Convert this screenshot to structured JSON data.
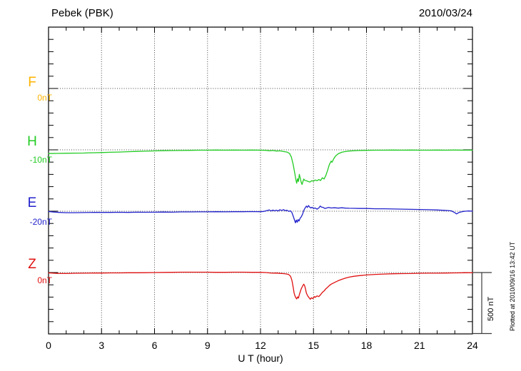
{
  "plotted_note": "Plotted at 2010/09/16 13:42 UT",
  "colors": {
    "axis": "#000000",
    "grid": "#444444",
    "scalebar": "#3c3c3c"
  },
  "chart_data": {
    "type": "line",
    "title": "Pebek (PBK)",
    "date": "2010/03/24",
    "xlabel": "U T (hour)",
    "x_range": [
      0,
      24
    ],
    "x_major_ticks": [
      "0",
      "3",
      "6",
      "9",
      "12",
      "15",
      "18",
      "21",
      "24"
    ],
    "x_major_tick_values": [
      0,
      3,
      6,
      9,
      12,
      15,
      18,
      21,
      24
    ],
    "x_minor_step_hours": 1,
    "y_unit": "nT",
    "y_minor_division_nT": 100,
    "channel_baseline_spacing_nT": 500,
    "grid_style": "dotted",
    "legend_position": "left",
    "scale_bar": {
      "label": "500 nT",
      "nT": 500
    },
    "series": [
      {
        "name": "F",
        "baseline_label": "0nT",
        "color": "#FFB300",
        "unit": "nT",
        "no_data": true,
        "points": []
      },
      {
        "name": "H",
        "baseline_label": "-10nT",
        "color": "#22CC22",
        "unit": "nT",
        "points": [
          [
            0,
            -30
          ],
          [
            0.5,
            -29
          ],
          [
            1,
            -28
          ],
          [
            1.5,
            -27
          ],
          [
            2,
            -26
          ],
          [
            2.5,
            -24
          ],
          [
            3,
            -22
          ],
          [
            3.5,
            -20
          ],
          [
            4,
            -18
          ],
          [
            4.5,
            -15
          ],
          [
            5,
            -13
          ],
          [
            5.5,
            -11
          ],
          [
            6,
            -9
          ],
          [
            6.5,
            -7
          ],
          [
            7,
            -6
          ],
          [
            7.5,
            -5
          ],
          [
            8,
            -4
          ],
          [
            8.5,
            -3
          ],
          [
            9,
            -3
          ],
          [
            9.5,
            -2
          ],
          [
            10,
            -3
          ],
          [
            10.5,
            -2
          ],
          [
            11,
            -3
          ],
          [
            11.5,
            -2
          ],
          [
            12,
            -3
          ],
          [
            12.3,
            -4
          ],
          [
            12.5,
            -8
          ],
          [
            12.7,
            -5
          ],
          [
            12.9,
            -10
          ],
          [
            13.1,
            -8
          ],
          [
            13.3,
            -14
          ],
          [
            13.5,
            -18
          ],
          [
            13.65,
            -30
          ],
          [
            13.75,
            -60
          ],
          [
            13.85,
            -120
          ],
          [
            13.95,
            -200
          ],
          [
            14.0,
            -240
          ],
          [
            14.05,
            -272
          ],
          [
            14.1,
            -235
          ],
          [
            14.15,
            -258
          ],
          [
            14.2,
            -200
          ],
          [
            14.25,
            -230
          ],
          [
            14.3,
            -262
          ],
          [
            14.35,
            -282
          ],
          [
            14.4,
            -260
          ],
          [
            14.45,
            -238
          ],
          [
            14.5,
            -248
          ],
          [
            14.6,
            -252
          ],
          [
            14.7,
            -258
          ],
          [
            14.8,
            -262
          ],
          [
            14.9,
            -252
          ],
          [
            15.0,
            -256
          ],
          [
            15.1,
            -246
          ],
          [
            15.2,
            -252
          ],
          [
            15.3,
            -242
          ],
          [
            15.4,
            -250
          ],
          [
            15.5,
            -228
          ],
          [
            15.6,
            -238
          ],
          [
            15.7,
            -208
          ],
          [
            15.8,
            -165
          ],
          [
            15.9,
            -120
          ],
          [
            16.0,
            -92
          ],
          [
            16.05,
            -102
          ],
          [
            16.15,
            -72
          ],
          [
            16.25,
            -50
          ],
          [
            16.4,
            -32
          ],
          [
            16.6,
            -20
          ],
          [
            16.8,
            -14
          ],
          [
            17.0,
            -10
          ],
          [
            17.5,
            -6
          ],
          [
            18,
            -4
          ],
          [
            18.5,
            -3
          ],
          [
            19,
            -3
          ],
          [
            19.5,
            -2
          ],
          [
            20,
            -3
          ],
          [
            20.5,
            -2
          ],
          [
            21,
            -3
          ],
          [
            21.5,
            -3
          ],
          [
            22,
            -2
          ],
          [
            22.5,
            -3
          ],
          [
            23,
            -2
          ],
          [
            23.5,
            -3
          ],
          [
            24,
            -3
          ]
        ]
      },
      {
        "name": "E",
        "baseline_label": "-20nT",
        "color": "#2222CC",
        "unit": "nT",
        "points": [
          [
            0,
            -3
          ],
          [
            0.3,
            -7
          ],
          [
            0.6,
            -10
          ],
          [
            1,
            -12
          ],
          [
            1.5,
            -12
          ],
          [
            2,
            -11
          ],
          [
            2.5,
            -10
          ],
          [
            3,
            -10
          ],
          [
            3.5,
            -10
          ],
          [
            4,
            -9
          ],
          [
            4.5,
            -10
          ],
          [
            5,
            -8
          ],
          [
            5.5,
            -9
          ],
          [
            6,
            -8
          ],
          [
            6.5,
            -7
          ],
          [
            7,
            -8
          ],
          [
            7.5,
            -6
          ],
          [
            8,
            -6
          ],
          [
            8.5,
            -5
          ],
          [
            9,
            -5
          ],
          [
            9.5,
            -4
          ],
          [
            10,
            -5
          ],
          [
            10.5,
            -4
          ],
          [
            11,
            -4
          ],
          [
            11.5,
            -3
          ],
          [
            12,
            -4
          ],
          [
            12.2,
            -2
          ],
          [
            12.35,
            4
          ],
          [
            12.5,
            10
          ],
          [
            12.6,
            2
          ],
          [
            12.7,
            9
          ],
          [
            12.8,
            3
          ],
          [
            12.9,
            8
          ],
          [
            13.0,
            2
          ],
          [
            13.1,
            12
          ],
          [
            13.2,
            5
          ],
          [
            13.3,
            13
          ],
          [
            13.4,
            4
          ],
          [
            13.5,
            8
          ],
          [
            13.6,
            -2
          ],
          [
            13.7,
            3
          ],
          [
            13.78,
            -12
          ],
          [
            13.85,
            -40
          ],
          [
            13.92,
            -70
          ],
          [
            13.98,
            -95
          ],
          [
            14.03,
            -72
          ],
          [
            14.08,
            -90
          ],
          [
            14.13,
            -68
          ],
          [
            14.18,
            -80
          ],
          [
            14.25,
            -55
          ],
          [
            14.3,
            -48
          ],
          [
            14.38,
            -25
          ],
          [
            14.45,
            5
          ],
          [
            14.52,
            25
          ],
          [
            14.6,
            42
          ],
          [
            14.65,
            30
          ],
          [
            14.72,
            46
          ],
          [
            14.78,
            34
          ],
          [
            14.85,
            26
          ],
          [
            14.92,
            32
          ],
          [
            15.0,
            22
          ],
          [
            15.1,
            26
          ],
          [
            15.2,
            16
          ],
          [
            15.3,
            26
          ],
          [
            15.38,
            42
          ],
          [
            15.45,
            34
          ],
          [
            15.55,
            30
          ],
          [
            15.65,
            22
          ],
          [
            15.75,
            26
          ],
          [
            15.85,
            30
          ],
          [
            16.0,
            26
          ],
          [
            16.2,
            28
          ],
          [
            16.4,
            25
          ],
          [
            16.6,
            28
          ],
          [
            16.8,
            25
          ],
          [
            17.0,
            24
          ],
          [
            17.3,
            23
          ],
          [
            17.6,
            22
          ],
          [
            18.0,
            22
          ],
          [
            18.5,
            20
          ],
          [
            19.0,
            20
          ],
          [
            19.5,
            18
          ],
          [
            20.0,
            17
          ],
          [
            20.5,
            15
          ],
          [
            21.0,
            14
          ],
          [
            21.5,
            12
          ],
          [
            22.0,
            10
          ],
          [
            22.4,
            7
          ],
          [
            22.8,
            3
          ],
          [
            23.0,
            -12
          ],
          [
            23.1,
            -22
          ],
          [
            23.25,
            -10
          ],
          [
            23.4,
            -4
          ],
          [
            23.6,
            0
          ],
          [
            23.8,
            2
          ],
          [
            24,
            0
          ]
        ]
      },
      {
        "name": "Z",
        "baseline_label": "0nT",
        "color": "#E01010",
        "unit": "nT",
        "points": [
          [
            0,
            -3
          ],
          [
            0.5,
            -7
          ],
          [
            1,
            -8
          ],
          [
            1.5,
            -6
          ],
          [
            2,
            -5
          ],
          [
            2.5,
            -4
          ],
          [
            3,
            -4
          ],
          [
            3.5,
            -3
          ],
          [
            4,
            -3
          ],
          [
            4.5,
            -2
          ],
          [
            5,
            -2
          ],
          [
            5.5,
            -1
          ],
          [
            6,
            0
          ],
          [
            6.5,
            1
          ],
          [
            7,
            2
          ],
          [
            7.5,
            3
          ],
          [
            8,
            3
          ],
          [
            8.5,
            3
          ],
          [
            9,
            3
          ],
          [
            9.5,
            2
          ],
          [
            10,
            2
          ],
          [
            10.5,
            3
          ],
          [
            11,
            3
          ],
          [
            11.5,
            2
          ],
          [
            12,
            2
          ],
          [
            12.3,
            0
          ],
          [
            12.5,
            -3
          ],
          [
            12.7,
            -5
          ],
          [
            12.9,
            -4
          ],
          [
            13.1,
            -7
          ],
          [
            13.3,
            -9
          ],
          [
            13.5,
            -12
          ],
          [
            13.6,
            -16
          ],
          [
            13.7,
            -30
          ],
          [
            13.78,
            -65
          ],
          [
            13.85,
            -120
          ],
          [
            13.9,
            -165
          ],
          [
            13.95,
            -190
          ],
          [
            14.0,
            -205
          ],
          [
            14.05,
            -215
          ],
          [
            14.1,
            -198
          ],
          [
            14.15,
            -208
          ],
          [
            14.2,
            -180
          ],
          [
            14.3,
            -135
          ],
          [
            14.4,
            -105
          ],
          [
            14.45,
            -95
          ],
          [
            14.5,
            -108
          ],
          [
            14.55,
            -135
          ],
          [
            14.6,
            -168
          ],
          [
            14.68,
            -192
          ],
          [
            14.75,
            -205
          ],
          [
            14.82,
            -218
          ],
          [
            14.88,
            -205
          ],
          [
            14.95,
            -212
          ],
          [
            15.0,
            -205
          ],
          [
            15.05,
            -196
          ],
          [
            15.1,
            -202
          ],
          [
            15.2,
            -190
          ],
          [
            15.3,
            -196
          ],
          [
            15.4,
            -180
          ],
          [
            15.5,
            -162
          ],
          [
            15.6,
            -150
          ],
          [
            15.7,
            -132
          ],
          [
            15.8,
            -120
          ],
          [
            15.9,
            -106
          ],
          [
            16.0,
            -95
          ],
          [
            16.2,
            -80
          ],
          [
            16.4,
            -66
          ],
          [
            16.6,
            -55
          ],
          [
            16.8,
            -46
          ],
          [
            17.0,
            -38
          ],
          [
            17.3,
            -30
          ],
          [
            17.6,
            -25
          ],
          [
            18.0,
            -20
          ],
          [
            18.5,
            -15
          ],
          [
            19.0,
            -12
          ],
          [
            19.5,
            -10
          ],
          [
            20.0,
            -9
          ],
          [
            20.5,
            -8
          ],
          [
            21.0,
            -6
          ],
          [
            21.5,
            -5
          ],
          [
            22.0,
            -5
          ],
          [
            22.5,
            -4
          ],
          [
            23.0,
            -3
          ],
          [
            23.5,
            -2
          ],
          [
            24,
            -1
          ]
        ]
      }
    ]
  }
}
